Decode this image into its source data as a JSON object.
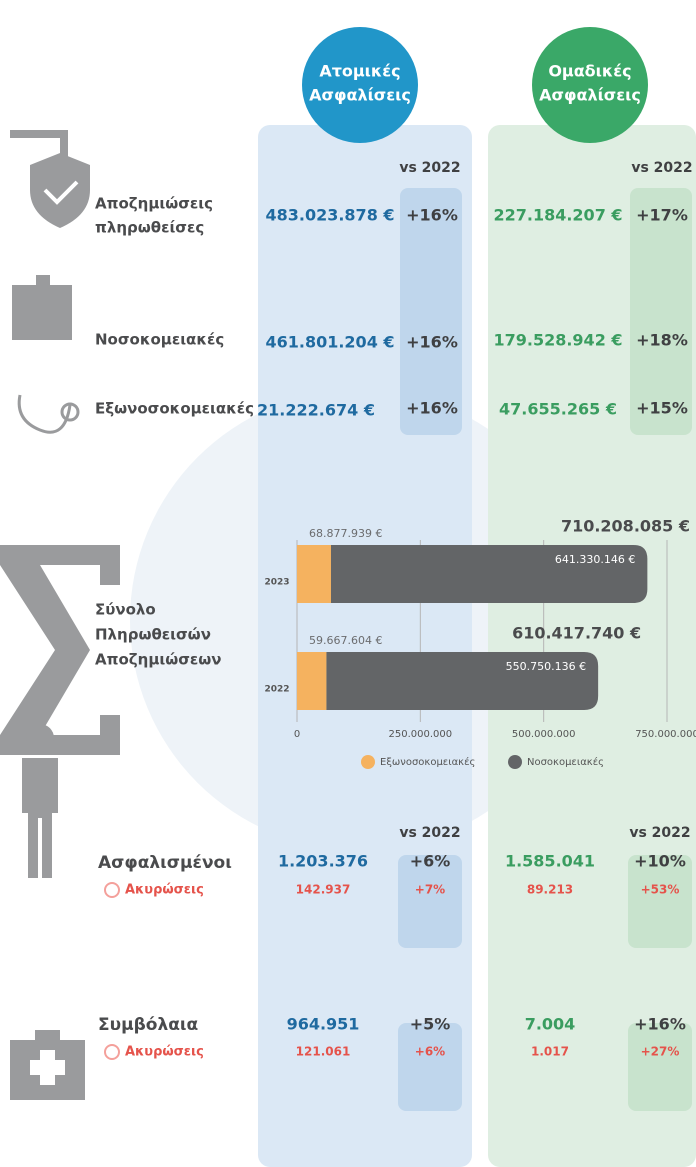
{
  "columns": {
    "individual": {
      "title_lines": [
        "Ατομικές",
        "Ασφαλίσεις"
      ]
    },
    "group": {
      "title_lines": [
        "Ομαδικές",
        "Ασφαλίσεις"
      ]
    }
  },
  "vs_label": "vs 2022",
  "claims": [
    {
      "label_lines": [
        "Αποζημιώσεις",
        "πληρωθείσες"
      ],
      "individual": {
        "value": "483.023.878 €",
        "change": "+16%"
      },
      "group": {
        "value": "227.184.207 €",
        "change": "+17%"
      }
    },
    {
      "label_lines": [
        "Νοσοκομειακές"
      ],
      "individual": {
        "value": "461.801.204 €",
        "change": "+16%"
      },
      "group": {
        "value": "179.528.942 €",
        "change": "+18%"
      }
    },
    {
      "label_lines": [
        "Εξωνοσοκομειακές"
      ],
      "individual": {
        "value": "21.222.674 €",
        "change": "+16%"
      },
      "group": {
        "value": "47.655.265 €",
        "change": "+15%"
      }
    }
  ],
  "totals_section": {
    "label_lines": [
      "Σύνολο",
      "Πληρωθεισών",
      "Αποζημιώσεων"
    ]
  },
  "chart_data": {
    "type": "stacked-bar-horizontal",
    "categories": [
      "2023",
      "2022"
    ],
    "series": [
      {
        "name": "Εξωνοσοκομειακές",
        "color": "#f5b25f",
        "values": [
          68877939,
          59667604
        ],
        "value_labels": [
          "68.877.939 €",
          "59.667.604 €"
        ]
      },
      {
        "name": "Νοσοκομειακές",
        "color": "#636567",
        "values": [
          641330146,
          550750136
        ],
        "value_labels": [
          "641.330.146 €",
          "550.750.136 €"
        ]
      }
    ],
    "totals": [
      710208085,
      610417740
    ],
    "total_labels": [
      "710.208.085 €",
      "610.417.740 €"
    ],
    "xlim": [
      0,
      750000000
    ],
    "xticks": [
      0,
      {
        "value": 250000000,
        "label": "250.000.000"
      },
      {
        "value": 500000000,
        "label": "500.000.000"
      },
      {
        "value": 750000000,
        "label": "750.000.000"
      }
    ],
    "grid": true
  },
  "people": [
    {
      "label": "Ασφαλισμένοι",
      "cancel_label": "Ακυρώσεις",
      "individual": {
        "value": "1.203.376",
        "change": "+6%",
        "cancel": "142.937",
        "cancel_change": "+7%"
      },
      "group": {
        "value": "1.585.041",
        "change": "+10%",
        "cancel": "89.213",
        "cancel_change": "+53%"
      }
    },
    {
      "label": "Συμβόλαια",
      "cancel_label": "Ακυρώσεις",
      "individual": {
        "value": "964.951",
        "change": "+5%",
        "cancel": "121.061",
        "cancel_change": "+6%"
      },
      "group": {
        "value": "7.004",
        "change": "+16%",
        "cancel": "1.017",
        "cancel_change": "+27%"
      }
    }
  ]
}
